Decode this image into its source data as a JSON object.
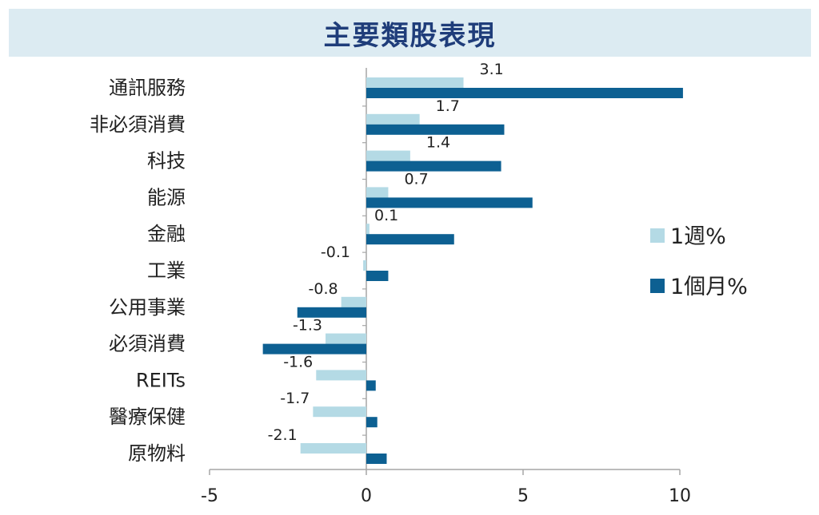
{
  "title": "主要類股表現",
  "colors": {
    "title_bg": "#dcebf2",
    "title_text": "#1f3d7a",
    "week": "#b4dae5",
    "month": "#0d6092",
    "axis": "#a6a6a6"
  },
  "chart_data": {
    "type": "bar",
    "orientation": "horizontal",
    "title": "主要類股表現",
    "categories": [
      "通訊服務",
      "非必須消費",
      "科技",
      "能源",
      "金融",
      "工業",
      "公用事業",
      "必須消費",
      "REITs",
      "醫療保健",
      "原物料"
    ],
    "series": [
      {
        "name": "1週%",
        "values": [
          3.1,
          1.7,
          1.4,
          0.7,
          0.1,
          -0.1,
          -0.8,
          -1.3,
          -1.6,
          -1.7,
          -2.1
        ],
        "data_labels": [
          "3.1",
          "1.7",
          "1.4",
          "0.7",
          "0.1",
          "-0.1",
          "-0.8",
          "-1.3",
          "-1.6",
          "-1.7",
          "-2.1"
        ]
      },
      {
        "name": "1個月%",
        "values": [
          10.1,
          4.4,
          4.3,
          5.3,
          2.8,
          0.7,
          -2.2,
          -3.3,
          0.3,
          0.35,
          0.65
        ]
      }
    ],
    "xlim": [
      -5,
      10
    ],
    "xticks": [
      -5,
      0,
      5,
      10
    ],
    "xtick_labels": [
      "-5",
      "0",
      "5",
      "10"
    ],
    "grid": false,
    "legend_position": "right"
  }
}
